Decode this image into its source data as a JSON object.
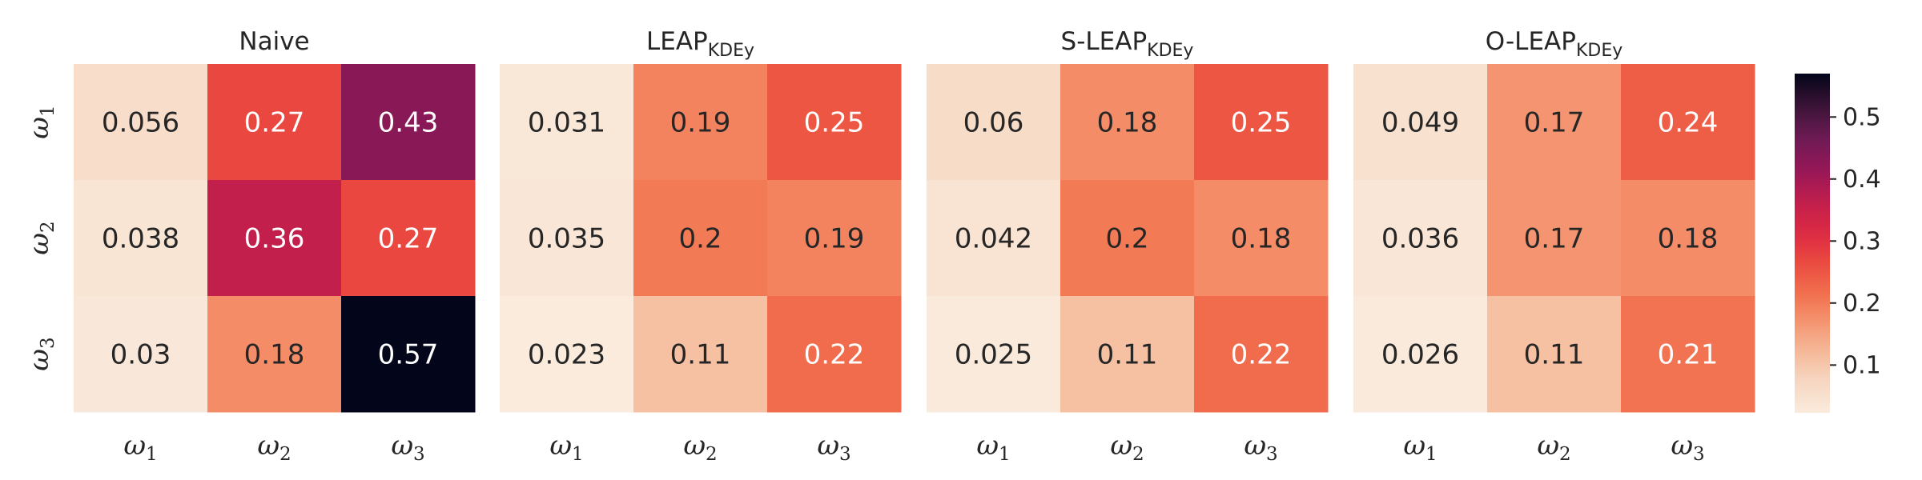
{
  "chart_data": {
    "type": "heatmap",
    "colormap": "rocket_r",
    "vmin": 0.023,
    "vmax": 0.57,
    "panels": [
      {
        "title": {
          "main": "Naive",
          "sub": ""
        },
        "cells": [
          [
            0.056,
            0.27,
            0.43
          ],
          [
            0.038,
            0.36,
            0.27
          ],
          [
            0.03,
            0.18,
            0.57
          ]
        ],
        "labels": [
          [
            "0.056",
            "0.27",
            "0.43"
          ],
          [
            "0.038",
            "0.36",
            "0.27"
          ],
          [
            "0.03",
            "0.18",
            "0.57"
          ]
        ]
      },
      {
        "title": {
          "main": "LEAP",
          "sub": "KDEy"
        },
        "cells": [
          [
            0.031,
            0.19,
            0.25
          ],
          [
            0.035,
            0.2,
            0.19
          ],
          [
            0.023,
            0.11,
            0.22
          ]
        ],
        "labels": [
          [
            "0.031",
            "0.19",
            "0.25"
          ],
          [
            "0.035",
            "0.2",
            "0.19"
          ],
          [
            "0.023",
            "0.11",
            "0.22"
          ]
        ]
      },
      {
        "title": {
          "main": "S-LEAP",
          "sub": "KDEy"
        },
        "cells": [
          [
            0.06,
            0.18,
            0.25
          ],
          [
            0.042,
            0.2,
            0.18
          ],
          [
            0.025,
            0.11,
            0.22
          ]
        ],
        "labels": [
          [
            "0.06",
            "0.18",
            "0.25"
          ],
          [
            "0.042",
            "0.2",
            "0.18"
          ],
          [
            "0.025",
            "0.11",
            "0.22"
          ]
        ]
      },
      {
        "title": {
          "main": "O-LEAP",
          "sub": "KDEy"
        },
        "cells": [
          [
            0.049,
            0.17,
            0.24
          ],
          [
            0.036,
            0.17,
            0.18
          ],
          [
            0.026,
            0.11,
            0.21
          ]
        ],
        "labels": [
          [
            "0.049",
            "0.17",
            "0.24"
          ],
          [
            "0.036",
            "0.17",
            "0.18"
          ],
          [
            "0.026",
            "0.11",
            "0.21"
          ]
        ]
      }
    ],
    "row_labels": [
      {
        "base": "ω",
        "sub": "1"
      },
      {
        "base": "ω",
        "sub": "2"
      },
      {
        "base": "ω",
        "sub": "3"
      }
    ],
    "col_labels": [
      {
        "base": "ω",
        "sub": "1"
      },
      {
        "base": "ω",
        "sub": "2"
      },
      {
        "base": "ω",
        "sub": "3"
      }
    ],
    "colorbar": {
      "ticks": [
        0.1,
        0.2,
        0.3,
        0.4,
        0.5
      ],
      "tick_labels": [
        "0.1",
        "0.2",
        "0.3",
        "0.4",
        "0.5"
      ],
      "placement": "right"
    }
  }
}
